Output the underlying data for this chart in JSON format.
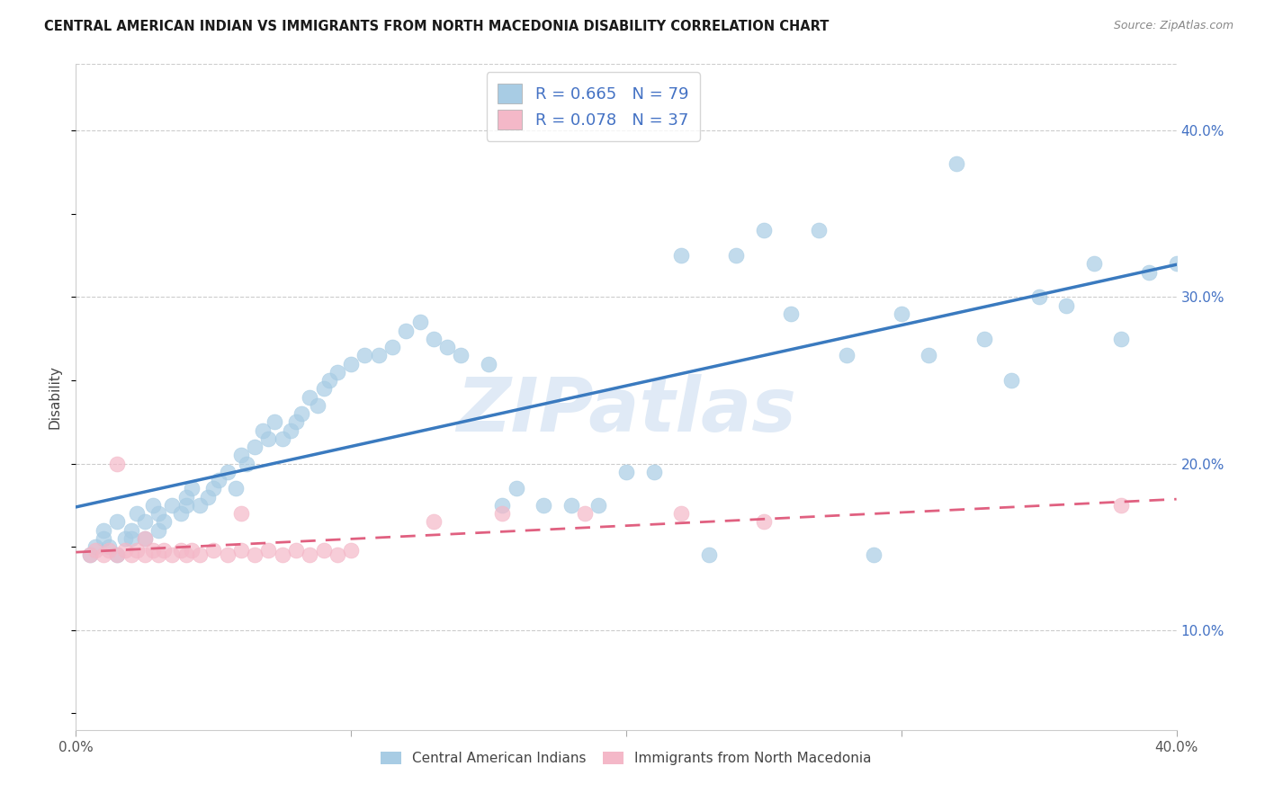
{
  "title": "CENTRAL AMERICAN INDIAN VS IMMIGRANTS FROM NORTH MACEDONIA DISABILITY CORRELATION CHART",
  "source": "Source: ZipAtlas.com",
  "ylabel": "Disability",
  "xlim": [
    0.0,
    0.4
  ],
  "ylim": [
    0.04,
    0.44
  ],
  "xticks": [
    0.0,
    0.1,
    0.2,
    0.3,
    0.4
  ],
  "xtick_labels": [
    "0.0%",
    "",
    "",
    "",
    "40.0%"
  ],
  "yticks_right": [
    0.1,
    0.2,
    0.3,
    0.4
  ],
  "ytick_labels_right": [
    "10.0%",
    "20.0%",
    "30.0%",
    "40.0%"
  ],
  "blue_color": "#a8cce4",
  "pink_color": "#f4b8c8",
  "blue_line_color": "#3a7abf",
  "pink_line_color": "#e06080",
  "R_blue": 0.665,
  "N_blue": 79,
  "R_pink": 0.078,
  "N_pink": 37,
  "watermark_text": "ZIPatlas",
  "blue_scatter_x": [
    0.005,
    0.007,
    0.01,
    0.01,
    0.012,
    0.015,
    0.015,
    0.018,
    0.02,
    0.02,
    0.022,
    0.025,
    0.025,
    0.028,
    0.03,
    0.03,
    0.032,
    0.035,
    0.038,
    0.04,
    0.04,
    0.042,
    0.045,
    0.048,
    0.05,
    0.052,
    0.055,
    0.058,
    0.06,
    0.062,
    0.065,
    0.068,
    0.07,
    0.072,
    0.075,
    0.078,
    0.08,
    0.082,
    0.085,
    0.088,
    0.09,
    0.092,
    0.095,
    0.1,
    0.105,
    0.11,
    0.115,
    0.12,
    0.125,
    0.13,
    0.135,
    0.14,
    0.15,
    0.155,
    0.16,
    0.17,
    0.18,
    0.19,
    0.2,
    0.21,
    0.22,
    0.23,
    0.24,
    0.25,
    0.26,
    0.27,
    0.28,
    0.29,
    0.3,
    0.31,
    0.32,
    0.33,
    0.34,
    0.35,
    0.36,
    0.37,
    0.38,
    0.39,
    0.4
  ],
  "blue_scatter_y": [
    0.145,
    0.15,
    0.155,
    0.16,
    0.15,
    0.165,
    0.145,
    0.155,
    0.16,
    0.155,
    0.17,
    0.165,
    0.155,
    0.175,
    0.16,
    0.17,
    0.165,
    0.175,
    0.17,
    0.175,
    0.18,
    0.185,
    0.175,
    0.18,
    0.185,
    0.19,
    0.195,
    0.185,
    0.205,
    0.2,
    0.21,
    0.22,
    0.215,
    0.225,
    0.215,
    0.22,
    0.225,
    0.23,
    0.24,
    0.235,
    0.245,
    0.25,
    0.255,
    0.26,
    0.265,
    0.265,
    0.27,
    0.28,
    0.285,
    0.275,
    0.27,
    0.265,
    0.26,
    0.175,
    0.185,
    0.175,
    0.175,
    0.175,
    0.195,
    0.195,
    0.325,
    0.145,
    0.325,
    0.34,
    0.29,
    0.34,
    0.265,
    0.145,
    0.29,
    0.265,
    0.38,
    0.275,
    0.25,
    0.3,
    0.295,
    0.32,
    0.275,
    0.315,
    0.32
  ],
  "pink_scatter_x": [
    0.005,
    0.007,
    0.01,
    0.012,
    0.015,
    0.018,
    0.02,
    0.022,
    0.025,
    0.028,
    0.03,
    0.032,
    0.035,
    0.038,
    0.04,
    0.042,
    0.045,
    0.05,
    0.055,
    0.06,
    0.065,
    0.07,
    0.075,
    0.08,
    0.085,
    0.09,
    0.095,
    0.1,
    0.13,
    0.155,
    0.185,
    0.22,
    0.25,
    0.015,
    0.025,
    0.06,
    0.38
  ],
  "pink_scatter_y": [
    0.145,
    0.148,
    0.145,
    0.148,
    0.145,
    0.148,
    0.145,
    0.148,
    0.145,
    0.148,
    0.145,
    0.148,
    0.145,
    0.148,
    0.145,
    0.148,
    0.145,
    0.148,
    0.145,
    0.148,
    0.145,
    0.148,
    0.145,
    0.148,
    0.145,
    0.148,
    0.145,
    0.148,
    0.165,
    0.17,
    0.17,
    0.17,
    0.165,
    0.2,
    0.155,
    0.17,
    0.175
  ]
}
